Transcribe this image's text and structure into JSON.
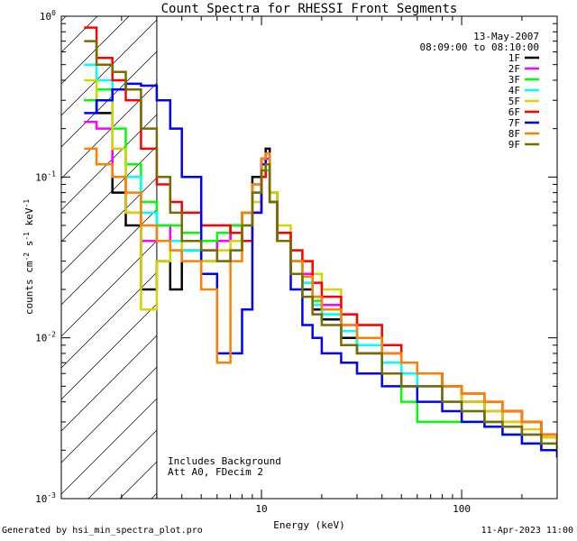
{
  "chart_data": {
    "type": "line",
    "title": "Count Spectra for RHESSI Front Segments",
    "xlabel": "Energy (keV)",
    "ylabel": "counts cm^-2 s^-1 keV^-1",
    "xscale": "log",
    "yscale": "log",
    "xlim": [
      1,
      300
    ],
    "ylim": [
      0.001,
      1
    ],
    "x_ticks": [
      {
        "value": 10,
        "label": "10"
      },
      {
        "value": 100,
        "label": "100"
      }
    ],
    "y_ticks": [
      {
        "value": 1,
        "label": "10",
        "exp": "0"
      },
      {
        "value": 0.1,
        "label": "10",
        "exp": "-1"
      },
      {
        "value": 0.01,
        "label": "10",
        "exp": "-2"
      },
      {
        "value": 0.001,
        "label": "10",
        "exp": "-3"
      }
    ],
    "date": "13-May-2007",
    "time_range": "08:09:00 to 08:10:00",
    "annotation_lines": [
      "Includes Background",
      "Att A0, FDecim 2"
    ],
    "hatched_region_max_kev": 3,
    "legend_position": "top-right",
    "series": [
      {
        "name": "1F",
        "color": "#000000",
        "x": [
          1.3,
          1.5,
          1.8,
          2.1,
          2.5,
          3.0,
          3.5,
          4,
          5,
          6,
          7,
          8,
          9,
          10,
          10.5,
          11,
          12,
          14,
          16,
          18,
          20,
          25,
          30,
          40,
          50,
          60,
          80,
          100,
          130,
          160,
          200,
          250,
          300
        ],
        "y": [
          0.3,
          0.25,
          0.08,
          0.05,
          0.02,
          0.03,
          0.02,
          0.035,
          0.03,
          0.04,
          0.05,
          0.06,
          0.1,
          0.13,
          0.15,
          0.08,
          0.04,
          0.025,
          0.02,
          0.015,
          0.013,
          0.01,
          0.008,
          0.006,
          0.005,
          0.006,
          0.005,
          0.004,
          0.003,
          0.0035,
          0.003,
          0.0025,
          0.002
        ]
      },
      {
        "name": "2F",
        "color": "#ff00ff",
        "x": [
          1.3,
          1.5,
          1.8,
          2.1,
          2.5,
          3.0,
          3.5,
          4,
          5,
          6,
          7,
          8,
          9,
          10,
          10.5,
          11,
          12,
          14,
          16,
          18,
          20,
          25,
          30,
          40,
          50,
          60,
          80,
          100,
          130,
          160,
          200,
          250,
          300
        ],
        "y": [
          0.22,
          0.2,
          0.1,
          0.06,
          0.04,
          0.05,
          0.04,
          0.04,
          0.035,
          0.04,
          0.05,
          0.06,
          0.09,
          0.12,
          0.13,
          0.07,
          0.04,
          0.03,
          0.025,
          0.018,
          0.016,
          0.012,
          0.01,
          0.008,
          0.006,
          0.005,
          0.004,
          0.004,
          0.0035,
          0.003,
          0.0025,
          0.002,
          0.0018
        ]
      },
      {
        "name": "3F",
        "color": "#00ff00",
        "x": [
          1.3,
          1.5,
          1.8,
          2.1,
          2.5,
          3.0,
          3.5,
          4,
          5,
          6,
          7,
          8,
          9,
          10,
          10.5,
          11,
          12,
          14,
          16,
          18,
          20,
          25,
          30,
          40,
          50,
          60,
          80,
          100,
          130,
          160,
          200,
          250,
          300
        ],
        "y": [
          0.3,
          0.35,
          0.2,
          0.12,
          0.07,
          0.05,
          0.05,
          0.045,
          0.04,
          0.045,
          0.05,
          0.06,
          0.08,
          0.1,
          0.11,
          0.07,
          0.045,
          0.03,
          0.022,
          0.017,
          0.014,
          0.011,
          0.009,
          0.006,
          0.004,
          0.003,
          0.003,
          0.003,
          0.0028,
          0.0025,
          0.0022,
          0.002,
          0.0018
        ]
      },
      {
        "name": "4F",
        "color": "#00ffff",
        "x": [
          1.3,
          1.5,
          1.8,
          2.1,
          2.5,
          3.0,
          3.5,
          4,
          5,
          6,
          7,
          8,
          9,
          10,
          10.5,
          11,
          12,
          14,
          16,
          18,
          20,
          25,
          30,
          40,
          50,
          60,
          80,
          100,
          130,
          160,
          200,
          250,
          300
        ],
        "y": [
          0.5,
          0.4,
          0.15,
          0.1,
          0.06,
          0.04,
          0.04,
          0.035,
          0.03,
          0.03,
          0.035,
          0.05,
          0.08,
          0.12,
          0.14,
          0.07,
          0.04,
          0.03,
          0.022,
          0.016,
          0.014,
          0.011,
          0.009,
          0.007,
          0.006,
          0.005,
          0.004,
          0.0035,
          0.003,
          0.0028,
          0.0025,
          0.0022,
          0.002
        ]
      },
      {
        "name": "5F",
        "color": "#d4d400",
        "x": [
          1.3,
          1.5,
          1.8,
          2.1,
          2.5,
          3.0,
          3.5,
          4,
          5,
          6,
          7,
          8,
          9,
          10,
          10.5,
          11,
          12,
          14,
          16,
          18,
          20,
          25,
          30,
          40,
          50,
          60,
          80,
          100,
          130,
          160,
          200,
          250,
          300
        ],
        "y": [
          0.4,
          0.3,
          0.15,
          0.06,
          0.015,
          0.03,
          0.035,
          0.04,
          0.03,
          0.035,
          0.04,
          0.05,
          0.07,
          0.1,
          0.12,
          0.08,
          0.05,
          0.035,
          0.03,
          0.025,
          0.02,
          0.014,
          0.012,
          0.009,
          0.007,
          0.006,
          0.005,
          0.004,
          0.0035,
          0.003,
          0.0027,
          0.0024,
          0.002
        ]
      },
      {
        "name": "6F",
        "color": "#ff0000",
        "x": [
          1.3,
          1.5,
          1.8,
          2.1,
          2.5,
          3.0,
          3.5,
          4,
          5,
          6,
          7,
          8,
          9,
          10,
          10.5,
          11,
          12,
          14,
          16,
          18,
          20,
          25,
          30,
          40,
          50,
          60,
          80,
          100,
          130,
          160,
          200,
          250,
          300
        ],
        "y": [
          0.85,
          0.55,
          0.4,
          0.3,
          0.15,
          0.09,
          0.07,
          0.06,
          0.05,
          0.05,
          0.045,
          0.04,
          0.06,
          0.1,
          0.12,
          0.07,
          0.045,
          0.035,
          0.03,
          0.022,
          0.018,
          0.014,
          0.012,
          0.009,
          0.007,
          0.006,
          0.005,
          0.0045,
          0.004,
          0.0035,
          0.003,
          0.0025,
          0.0022
        ]
      },
      {
        "name": "7F",
        "color": "#0000ff",
        "x": [
          1.3,
          1.5,
          1.8,
          2.1,
          2.5,
          3.0,
          3.5,
          4,
          5,
          6,
          7,
          8,
          9,
          10,
          10.5,
          11,
          12,
          14,
          16,
          18,
          20,
          25,
          30,
          40,
          50,
          60,
          80,
          100,
          130,
          160,
          200,
          250,
          300
        ],
        "y": [
          0.25,
          0.3,
          0.35,
          0.38,
          0.37,
          0.3,
          0.2,
          0.1,
          0.025,
          0.008,
          0.008,
          0.015,
          0.06,
          0.12,
          0.14,
          0.07,
          0.04,
          0.02,
          0.012,
          0.01,
          0.008,
          0.007,
          0.006,
          0.005,
          0.005,
          0.004,
          0.0035,
          0.003,
          0.0028,
          0.0025,
          0.0022,
          0.002,
          0.0018
        ]
      },
      {
        "name": "8F",
        "color": "#ff8000",
        "x": [
          1.3,
          1.5,
          1.8,
          2.1,
          2.5,
          3.0,
          3.5,
          4,
          5,
          6,
          7,
          8,
          9,
          10,
          10.5,
          11,
          12,
          14,
          16,
          18,
          20,
          25,
          30,
          40,
          50,
          60,
          80,
          100,
          130,
          160,
          200,
          250,
          300
        ],
        "y": [
          0.15,
          0.12,
          0.1,
          0.08,
          0.05,
          0.04,
          0.035,
          0.03,
          0.02,
          0.007,
          0.03,
          0.06,
          0.09,
          0.13,
          0.14,
          0.07,
          0.04,
          0.03,
          0.024,
          0.018,
          0.015,
          0.012,
          0.01,
          0.008,
          0.007,
          0.006,
          0.005,
          0.0045,
          0.004,
          0.0035,
          0.003,
          0.0025,
          0.0022
        ]
      },
      {
        "name": "9F",
        "color": "#7a6b00",
        "x": [
          1.3,
          1.5,
          1.8,
          2.1,
          2.5,
          3.0,
          3.5,
          4,
          5,
          6,
          7,
          8,
          9,
          10,
          10.5,
          11,
          12,
          14,
          16,
          18,
          20,
          25,
          30,
          40,
          50,
          60,
          80,
          100,
          130,
          160,
          200,
          250,
          300
        ],
        "y": [
          0.7,
          0.5,
          0.45,
          0.35,
          0.2,
          0.1,
          0.06,
          0.04,
          0.035,
          0.03,
          0.035,
          0.05,
          0.08,
          0.11,
          0.12,
          0.07,
          0.04,
          0.025,
          0.018,
          0.014,
          0.012,
          0.009,
          0.008,
          0.006,
          0.005,
          0.005,
          0.004,
          0.0035,
          0.003,
          0.0028,
          0.0025,
          0.0022,
          0.002
        ]
      }
    ]
  },
  "footer": {
    "generated_by": "Generated by hsi_min_spectra_plot.pro",
    "timestamp": "11-Apr-2023 11:00"
  }
}
